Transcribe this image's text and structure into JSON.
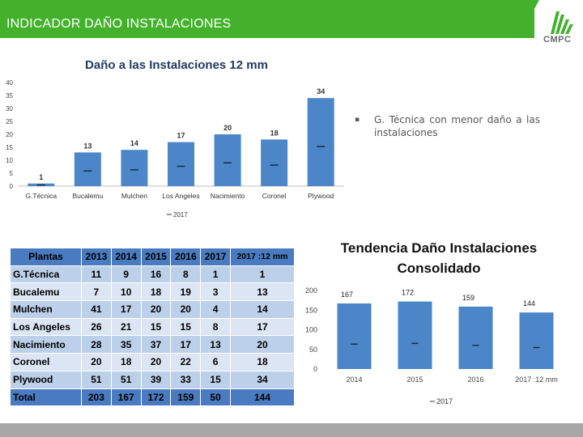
{
  "header": {
    "title": "INDICADOR DAÑO INSTALACIONES",
    "logo_text": "CMPC",
    "accent": "#43b12b"
  },
  "bullet": {
    "line1": "G. Técnica con menor daño a las",
    "line2": "instalaciones"
  },
  "chart_data": [
    {
      "type": "bar",
      "title": "Daño a las Instalaciones 12 mm",
      "categories": [
        "G.Técnica",
        "Bucalemu",
        "Mulchen",
        "Los Angeles",
        "Nacimiento",
        "Coronel",
        "Plywood"
      ],
      "series": [
        {
          "name": "2017",
          "values": [
            1,
            13,
            14,
            17,
            20,
            18,
            34
          ]
        }
      ],
      "ylim": [
        0,
        40
      ],
      "yticks": [
        0,
        5,
        10,
        15,
        20,
        25,
        30,
        35,
        40
      ],
      "legend": "bottom",
      "bar_color": "#4a86c8"
    },
    {
      "type": "bar",
      "title": "Tendencia Daño Instalaciones Consolidado",
      "categories": [
        "2014",
        "2015",
        "2016",
        "2017 :12 mm"
      ],
      "series": [
        {
          "name": "2017",
          "values": [
            167,
            172,
            159,
            144
          ]
        }
      ],
      "ylim": [
        0,
        200
      ],
      "yticks": [
        0,
        50,
        100,
        150,
        200
      ],
      "legend": "bottom",
      "bar_color": "#4a86c8"
    },
    {
      "type": "table",
      "columns": [
        "Plantas",
        "2013",
        "2014",
        "2015",
        "2016",
        "2017",
        "2017 :12 mm"
      ],
      "rows": [
        [
          "G.Técnica",
          "11",
          "9",
          "16",
          "8",
          "1",
          "1"
        ],
        [
          "Bucalemu",
          "7",
          "10",
          "18",
          "19",
          "3",
          "13"
        ],
        [
          "Mulchen",
          "41",
          "17",
          "20",
          "20",
          "4",
          "14"
        ],
        [
          "Los Angeles",
          "26",
          "21",
          "15",
          "15",
          "8",
          "17"
        ],
        [
          "Nacimiento",
          "28",
          "35",
          "37",
          "17",
          "13",
          "20"
        ],
        [
          "Coronel",
          "20",
          "18",
          "20",
          "22",
          "6",
          "18"
        ],
        [
          "Plywood",
          "51",
          "51",
          "39",
          "33",
          "15",
          "34"
        ],
        [
          "Total",
          "203",
          "167",
          "172",
          "159",
          "50",
          "144"
        ]
      ]
    }
  ]
}
